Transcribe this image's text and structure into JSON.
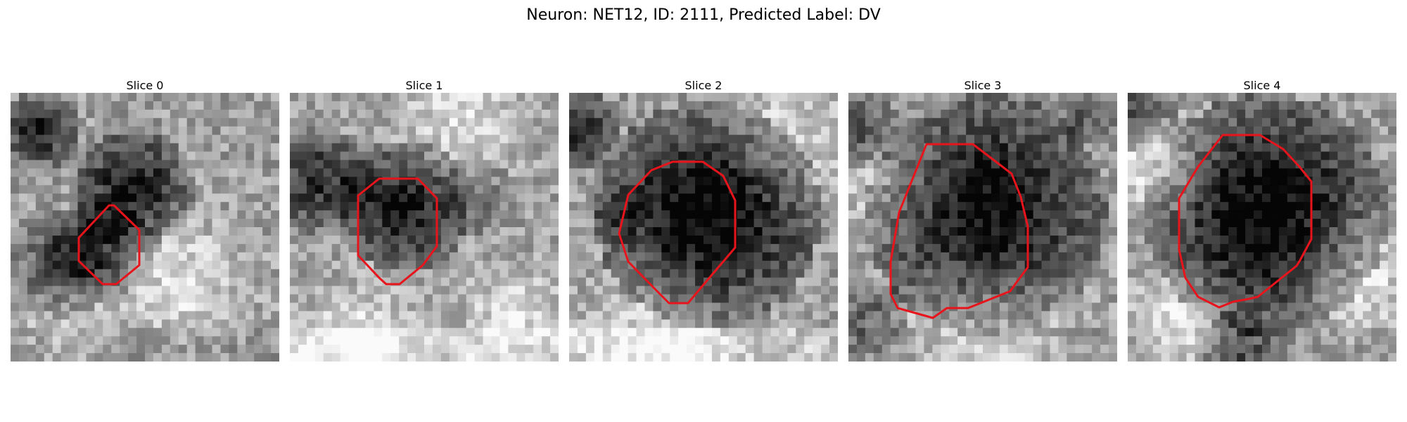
{
  "figure": {
    "title": "Neuron: NET12, ID: 2111, Predicted Label: DV"
  },
  "panels": [
    {
      "title": "Slice 0",
      "contour_color": "#e8141c"
    },
    {
      "title": "Slice 1",
      "contour_color": "#e8141c"
    },
    {
      "title": "Slice 2",
      "contour_color": "#e8141c"
    },
    {
      "title": "Slice 3",
      "contour_color": "#e8141c"
    },
    {
      "title": "Slice 4",
      "contour_color": "#e8141c"
    }
  ]
}
